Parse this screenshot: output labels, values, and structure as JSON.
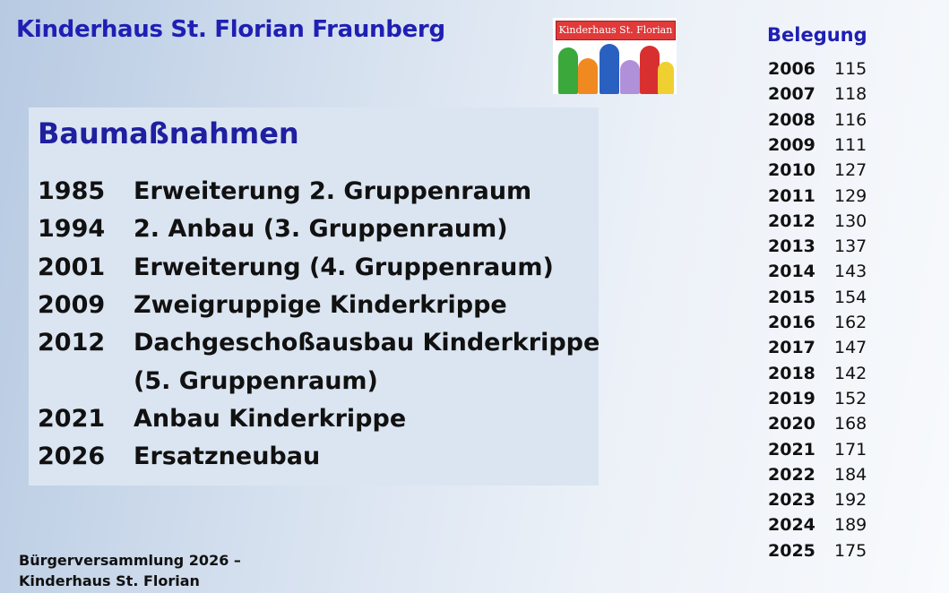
{
  "header": {
    "title": "Kinderhaus St. Florian Fraunberg"
  },
  "logo": {
    "text": "Kinderhaus St. Florian"
  },
  "baumassnahmen": {
    "heading": "Baumaßnahmen",
    "items": [
      {
        "year": "1985",
        "text": "Erweiterung 2. Gruppenraum"
      },
      {
        "year": "1994",
        "text": "2. Anbau (3. Gruppenraum)"
      },
      {
        "year": "2001",
        "text": "Erweiterung (4. Gruppenraum)"
      },
      {
        "year": "2009",
        "text": "Zweigruppige Kinderkrippe"
      },
      {
        "year": "2012",
        "text": "Dachgeschoßausbau Kinderkrippe"
      },
      {
        "year": "",
        "text": "(5. Gruppenraum)"
      },
      {
        "year": "2021",
        "text": "Anbau Kinderkrippe"
      },
      {
        "year": "2026",
        "text": "Ersatzneubau"
      }
    ]
  },
  "belegung": {
    "title": "Belegung",
    "rows": [
      {
        "year": "2006",
        "value": "115"
      },
      {
        "year": "2007",
        "value": "118"
      },
      {
        "year": "2008",
        "value": "116"
      },
      {
        "year": "2009",
        "value": "111"
      },
      {
        "year": "2010",
        "value": "127"
      },
      {
        "year": "2011",
        "value": "129"
      },
      {
        "year": "2012",
        "value": "130"
      },
      {
        "year": "2013",
        "value": "137"
      },
      {
        "year": "2014",
        "value": "143"
      },
      {
        "year": "2015",
        "value": "154"
      },
      {
        "year": "2016",
        "value": "162"
      },
      {
        "year": "2017",
        "value": "147"
      },
      {
        "year": "2018",
        "value": "142"
      },
      {
        "year": "2019",
        "value": "152"
      },
      {
        "year": "2020",
        "value": "168"
      },
      {
        "year": "2021",
        "value": "171"
      },
      {
        "year": "2022",
        "value": "184"
      },
      {
        "year": "2023",
        "value": "192"
      },
      {
        "year": "2024",
        "value": "189"
      },
      {
        "year": "2025",
        "value": "175"
      }
    ]
  },
  "footer": {
    "line1": "Bürgerversammlung 2026 –",
    "line2": "Kinderhaus St. Florian"
  }
}
